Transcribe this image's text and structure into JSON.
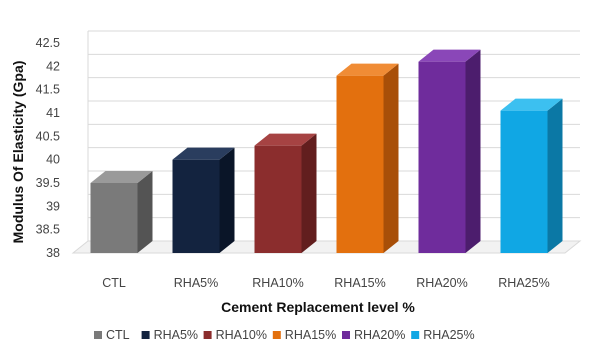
{
  "chart_data": {
    "type": "bar",
    "style": "3d-clustered-column",
    "categories": [
      "CTL",
      "RHA5%",
      "RHA10%",
      "RHA15%",
      "RHA20%",
      "RHA25%"
    ],
    "values": [
      39.5,
      40.0,
      40.3,
      41.8,
      42.1,
      41.05
    ],
    "colors": [
      "#7a7a7a",
      "#13233f",
      "#8b2d2d",
      "#e3700e",
      "#6f2c9c",
      "#10a7e4"
    ],
    "side_colors": [
      "#545454",
      "#0a1528",
      "#621e1e",
      "#a84f08",
      "#4c1d6d",
      "#0b78a5"
    ],
    "top_colors": [
      "#9a9a9a",
      "#2a3d5e",
      "#a64343",
      "#f08c35",
      "#8a47b8",
      "#3cc0f0"
    ],
    "xlabel": "Cement Replacement level %",
    "ylabel": "Modulus Of Elasticity (Gpa)",
    "ylim": [
      38,
      42.5
    ],
    "yticks": [
      "38",
      "38.5",
      "39",
      "39.5",
      "40",
      "40.5",
      "41",
      "41.5",
      "42",
      "42.5"
    ],
    "grid": true,
    "legend": "bottom",
    "legend_entries": [
      "CTL",
      "RHA5%",
      "RHA10%",
      "RHA15%",
      "RHA20%",
      "RHA25%"
    ]
  }
}
